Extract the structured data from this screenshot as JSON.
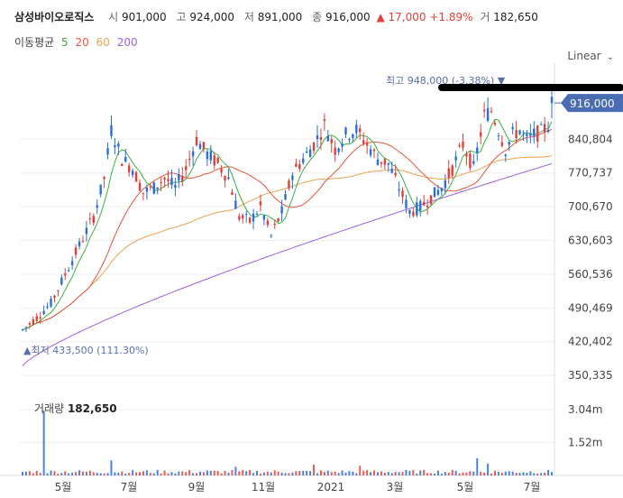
{
  "header": {
    "name": "삼성바이오로직스",
    "open_label": "시",
    "open": "901,000",
    "high_label": "고",
    "high": "924,000",
    "low_label": "저",
    "low": "891,000",
    "close_label": "종",
    "close": "916,000",
    "change_arrow": "▲",
    "change": "17,000",
    "change_pct": "+1.89%",
    "volume_label": "거",
    "volume": "182,650"
  },
  "moving_average": {
    "label": "이동평균",
    "periods": [
      {
        "period": "5",
        "color": "#3cb043"
      },
      {
        "period": "20",
        "color": "#e8543c"
      },
      {
        "period": "60",
        "color": "#f0a050"
      },
      {
        "period": "200",
        "color": "#a060e0"
      }
    ]
  },
  "scale_selector": {
    "label": "Linear",
    "icon": "chevron-down-icon"
  },
  "volume_panel": {
    "label": "거래량",
    "value": "182,650"
  },
  "chart_data": {
    "type": "candlestick",
    "y_ticks": [
      "840,804",
      "770,737",
      "700,670",
      "630,603",
      "560,536",
      "490,469",
      "420,402",
      "350,335"
    ],
    "y_tick_values": [
      840804,
      770737,
      700670,
      630603,
      560536,
      490469,
      420402,
      350335
    ],
    "x_ticks": [
      "5월",
      "7월",
      "9월",
      "11월",
      "2021",
      "3월",
      "5월",
      "7월"
    ],
    "current_price": {
      "label": "916,000",
      "value": 916000
    },
    "high_annotation": {
      "label": "최고 948,000 (-3.38%) ▼",
      "value": 948000
    },
    "low_annotation": {
      "label": "▲최저 433,500 (111.30%)",
      "value": 433500
    },
    "volume_ticks": [
      "3.04m",
      "1.52m"
    ],
    "volume_tick_values": [
      3040000,
      1520000
    ],
    "colors": {
      "up": "#e0403a",
      "down": "#2a6fd8",
      "ma5": "#3cb043",
      "ma20": "#e8543c",
      "ma60": "#f0a050",
      "ma200": "#a060e0",
      "badge": "#4a6cb3"
    },
    "price_keypoints": [
      [
        0,
        445000
      ],
      [
        4,
        470000
      ],
      [
        8,
        500000
      ],
      [
        12,
        560000
      ],
      [
        16,
        620000
      ],
      [
        20,
        680000
      ],
      [
        23,
        760000
      ],
      [
        25,
        860000
      ],
      [
        28,
        800000
      ],
      [
        31,
        780000
      ],
      [
        34,
        730000
      ],
      [
        37,
        740000
      ],
      [
        40,
        760000
      ],
      [
        43,
        740000
      ],
      [
        46,
        780000
      ],
      [
        49,
        840000
      ],
      [
        52,
        810000
      ],
      [
        55,
        790000
      ],
      [
        58,
        760000
      ],
      [
        61,
        680000
      ],
      [
        64,
        670000
      ],
      [
        67,
        700000
      ],
      [
        70,
        640000
      ],
      [
        73,
        690000
      ],
      [
        76,
        770000
      ],
      [
        79,
        800000
      ],
      [
        82,
        830000
      ],
      [
        85,
        870000
      ],
      [
        88,
        820000
      ],
      [
        91,
        850000
      ],
      [
        94,
        860000
      ],
      [
        97,
        830000
      ],
      [
        100,
        800000
      ],
      [
        103,
        790000
      ],
      [
        106,
        740000
      ],
      [
        109,
        690000
      ],
      [
        112,
        700000
      ],
      [
        115,
        720000
      ],
      [
        118,
        740000
      ],
      [
        121,
        780000
      ],
      [
        124,
        830000
      ],
      [
        127,
        780000
      ],
      [
        130,
        890000
      ],
      [
        132,
        900000
      ],
      [
        134,
        860000
      ],
      [
        136,
        820000
      ],
      [
        138,
        850000
      ],
      [
        140,
        860000
      ],
      [
        142,
        840000
      ],
      [
        144,
        850000
      ],
      [
        146,
        855000
      ],
      [
        148,
        870000
      ],
      [
        149,
        916000
      ]
    ],
    "volume_spikes": [
      [
        6,
        3000000
      ],
      [
        25,
        700000
      ],
      [
        60,
        400000
      ],
      [
        82,
        500000
      ],
      [
        95,
        450000
      ],
      [
        128,
        800000
      ],
      [
        131,
        550000
      ]
    ]
  }
}
